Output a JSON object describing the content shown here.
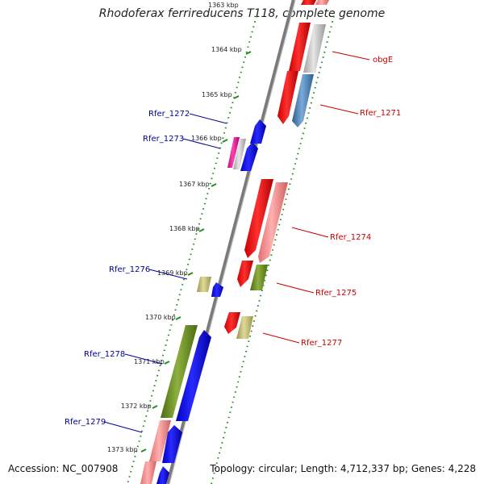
{
  "header": {
    "title": "Rhodoferax ferrireducens T118, complete genome"
  },
  "footer": {
    "accession": "Accession: NC_007908",
    "summary": "Topology: circular; Length: 4,712,337 bp; Genes: 4,228"
  },
  "ticks": [
    "1363 kbp",
    "1364 kbp",
    "1365 kbp",
    "1366 kbp",
    "1367 kbp",
    "1368 kbp",
    "1369 kbp",
    "1370 kbp",
    "1371 kbp",
    "1372 kbp",
    "1373 kbp"
  ],
  "genes": {
    "obgE": "obgE",
    "rfer_1271": "Rfer_1271",
    "rfer_1272": "Rfer_1272",
    "rfer_1273": "Rfer_1273",
    "rfer_1274": "Rfer_1274",
    "rfer_1275": "Rfer_1275",
    "rfer_1276": "Rfer_1276",
    "rfer_1277": "Rfer_1277",
    "rfer_1278": "Rfer_1278",
    "rfer_1279": "Rfer_1279"
  },
  "colors": {
    "red": "#ff0000",
    "pink": "#f08080",
    "blue": "#0000ff",
    "steelblue": "#4682b4",
    "olive": "#6b8e23",
    "khaki": "#bdb76b",
    "gray": "#c0c0c0",
    "magenta": "#ff1493",
    "backbone": "#808080",
    "tickGreen": "#228b22",
    "labelRed": "#cc0000",
    "labelBlue": "#000099"
  }
}
